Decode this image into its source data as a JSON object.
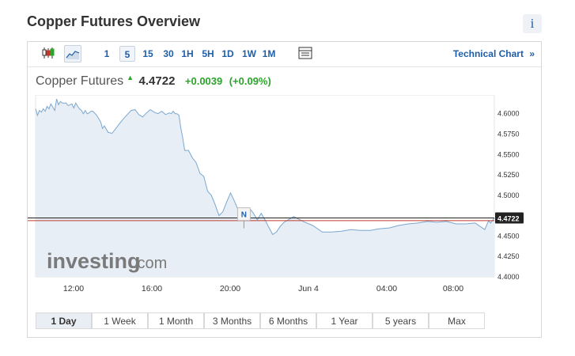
{
  "page": {
    "title": "Copper Futures Overview",
    "info_glyph": "i"
  },
  "toolbar": {
    "chart_types": [
      {
        "name": "candlestick-chart-icon",
        "active": false
      },
      {
        "name": "area-chart-icon",
        "active": true
      }
    ],
    "intervals": [
      {
        "label": "1",
        "active": false
      },
      {
        "label": "5",
        "active": true
      },
      {
        "label": "15",
        "active": false
      },
      {
        "label": "30",
        "active": false
      },
      {
        "label": "1H",
        "active": false
      },
      {
        "label": "5H",
        "active": false
      },
      {
        "label": "1D",
        "active": false
      },
      {
        "label": "1W",
        "active": false
      },
      {
        "label": "1M",
        "active": false
      }
    ],
    "calendar_icon": "table-icon",
    "technical_link": "Technical Chart",
    "technical_arrow": "»"
  },
  "quote": {
    "name": "Copper Futures",
    "direction": "up",
    "price": "4.4722",
    "change": "+0.0039",
    "change_pct": "(+0.09%)"
  },
  "colors": {
    "up": "#2aa52a",
    "link": "#1f5ea8",
    "line": "#7ba7cf",
    "fill": "#e7eef5",
    "current_line": "#222222",
    "prev_close_line": "#c0392b"
  },
  "watermark": {
    "brand": "investing",
    "suffix": ".com"
  },
  "chart_data": {
    "type": "area",
    "x_ticks": [
      "12:00",
      "16:00",
      "20:00",
      "Jun 4",
      "04:00",
      "08:00"
    ],
    "y_ticks": [
      4.6,
      4.575,
      4.55,
      4.525,
      4.5,
      4.475,
      4.45,
      4.425,
      4.4
    ],
    "y_tick_labels": [
      "4.6000",
      "4.5750",
      "4.5500",
      "4.5250",
      "4.5000",
      "",
      "4.4500",
      "4.4250",
      "4.4000"
    ],
    "ylim": [
      4.4,
      4.623
    ],
    "current_price": 4.4722,
    "current_price_label": "4.4722",
    "prev_close_line": 4.469,
    "marker": {
      "label": "N",
      "x": 10.9,
      "y": 4.477
    },
    "series": [
      {
        "x": [
          0,
          0.1,
          0.2,
          0.3,
          0.4,
          0.5,
          0.6,
          0.7,
          0.8,
          0.9,
          1.0,
          1.1,
          1.2,
          1.3,
          1.4,
          1.5,
          1.6,
          1.7,
          1.8,
          1.9,
          2.0,
          2.1,
          2.2,
          2.3,
          2.4,
          2.5,
          2.6,
          2.7,
          2.8,
          2.9,
          3.0,
          3.2,
          3.4,
          3.5,
          3.6,
          3.8,
          4.0,
          4.2,
          4.4,
          4.6,
          4.8,
          5.0,
          5.2,
          5.4,
          5.6,
          5.8,
          6.0,
          6.2,
          6.4,
          6.6,
          6.8,
          7.0,
          7.1,
          7.2,
          7.3,
          7.4,
          7.5,
          7.6,
          7.7,
          7.8,
          8.0,
          8.2,
          8.4,
          8.6,
          8.8,
          9.0,
          9.2,
          9.4,
          9.6,
          9.8,
          10.0,
          10.2,
          10.4,
          10.6,
          10.8,
          11.0,
          11.2,
          11.4,
          11.6,
          11.8,
          12.0,
          12.2,
          12.4,
          12.6,
          12.8,
          13.0,
          13.5,
          14.0,
          14.5,
          15.0,
          15.5,
          16.0,
          16.5,
          17.0,
          17.5,
          18.0,
          18.5,
          19.0,
          19.5,
          20.0,
          20.5,
          21.0,
          21.5,
          22.0,
          22.5,
          23.0,
          23.5,
          23.7,
          23.8,
          24.0
        ],
        "y": [
          4.606,
          4.598,
          4.604,
          4.602,
          4.606,
          4.603,
          4.609,
          4.606,
          4.612,
          4.608,
          4.604,
          4.618,
          4.611,
          4.615,
          4.613,
          4.613,
          4.613,
          4.61,
          4.611,
          4.612,
          4.607,
          4.613,
          4.609,
          4.606,
          4.604,
          4.6,
          4.604,
          4.6,
          4.601,
          4.603,
          4.603,
          4.598,
          4.59,
          4.582,
          4.585,
          4.577,
          4.576,
          4.582,
          4.588,
          4.594,
          4.599,
          4.604,
          4.605,
          4.599,
          4.596,
          4.601,
          4.605,
          4.602,
          4.6,
          4.603,
          4.599,
          4.601,
          4.6,
          4.603,
          4.6,
          4.6,
          4.598,
          4.582,
          4.57,
          4.555,
          4.555,
          4.546,
          4.54,
          4.527,
          4.523,
          4.505,
          4.5,
          4.488,
          4.475,
          4.48,
          4.492,
          4.503,
          4.493,
          4.482,
          4.476,
          4.472,
          4.484,
          4.478,
          4.47,
          4.478,
          4.47,
          4.461,
          4.452,
          4.455,
          4.462,
          4.467,
          4.474,
          4.468,
          4.463,
          4.455,
          4.455,
          4.456,
          4.458,
          4.457,
          4.457,
          4.459,
          4.46,
          4.463,
          4.465,
          4.466,
          4.468,
          4.467,
          4.468,
          4.465,
          4.465,
          4.466,
          4.458,
          4.469,
          4.466,
          4.472
        ]
      }
    ]
  },
  "ranges": [
    {
      "label": "1 Day",
      "active": true
    },
    {
      "label": "1 Week",
      "active": false
    },
    {
      "label": "1 Month",
      "active": false
    },
    {
      "label": "3 Months",
      "active": false
    },
    {
      "label": "6 Months",
      "active": false
    },
    {
      "label": "1 Year",
      "active": false
    },
    {
      "label": "5 years",
      "active": false
    },
    {
      "label": "Max",
      "active": false
    }
  ]
}
